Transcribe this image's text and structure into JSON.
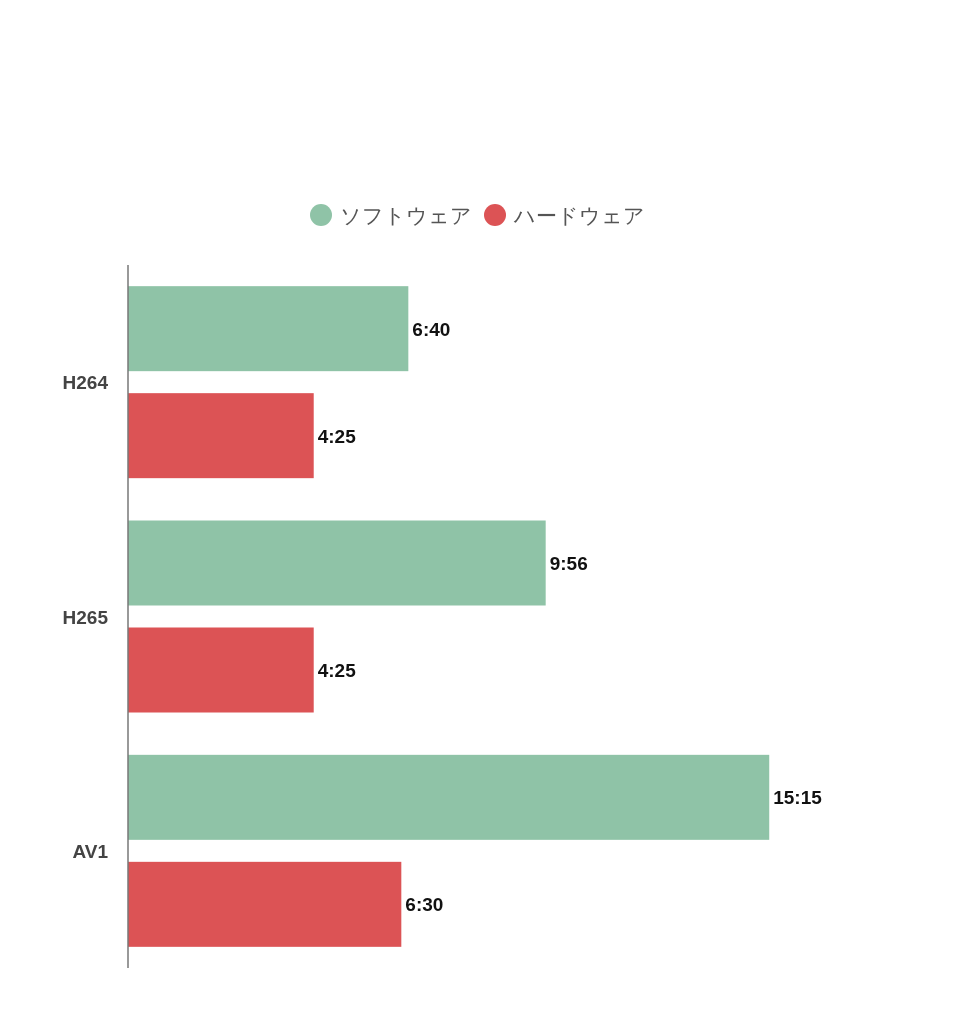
{
  "chart_data": {
    "type": "bar",
    "orientation": "horizontal",
    "categories": [
      "H264",
      "H265",
      "AV1"
    ],
    "series": [
      {
        "name": "ソフトウェア",
        "color": "#8fc3a7",
        "values": [
          400,
          596,
          915
        ],
        "value_labels": [
          "6:40",
          "9:56",
          "15:15"
        ]
      },
      {
        "name": "ハードウェア",
        "color": "#dc5355",
        "values": [
          265,
          265,
          390
        ],
        "value_labels": [
          "4:25",
          "4:25",
          "6:30"
        ]
      }
    ],
    "legend": "top"
  }
}
